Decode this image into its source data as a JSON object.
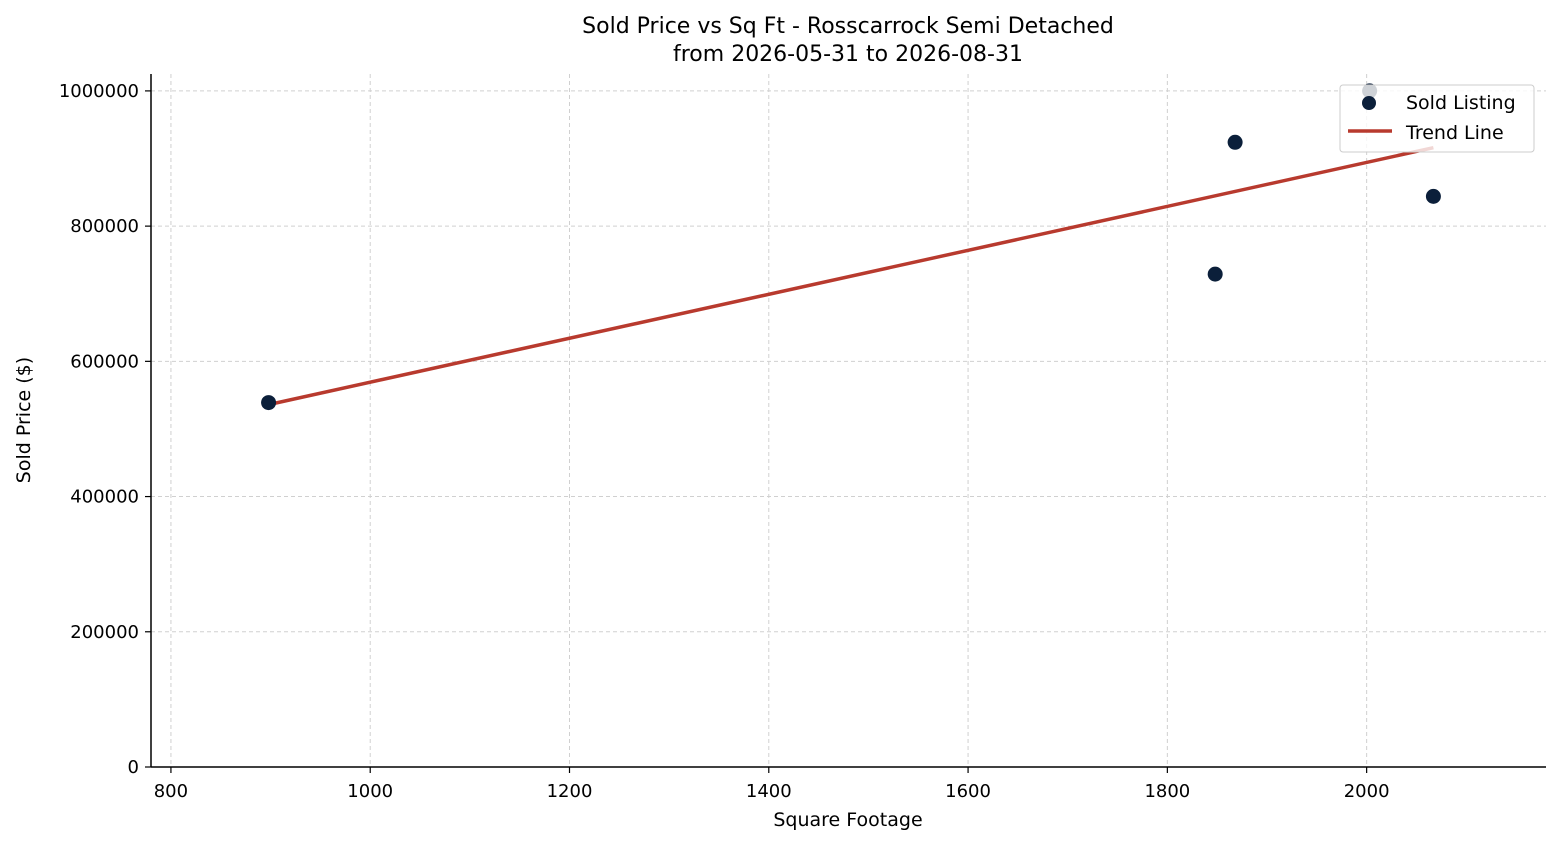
{
  "chart_data": {
    "type": "scatter",
    "title": "Sold Price vs Sq Ft - Rosscarrock Semi Detached",
    "subtitle": "from 2026-05-31 to 2026-08-31",
    "xlabel": "Square Footage",
    "ylabel": "Sold Price ($)",
    "xlim": [
      780,
      2180
    ],
    "ylim": [
      0,
      1025000
    ],
    "xticks": [
      800,
      1000,
      1200,
      1400,
      1600,
      1800,
      2000
    ],
    "yticks": [
      0,
      200000,
      400000,
      600000,
      800000,
      1000000
    ],
    "grid": true,
    "legend_position": "top-right",
    "series": [
      {
        "name": "Sold Listing",
        "kind": "scatter",
        "color": "#0b1f3a",
        "x": [
          898,
          1848,
          1868,
          2003,
          2067
        ],
        "y": [
          539000,
          729000,
          924000,
          1000000,
          844000
        ]
      },
      {
        "name": "Trend Line",
        "kind": "line",
        "color": "#b83a2e",
        "x": [
          898,
          2067
        ],
        "y": [
          536000,
          916000
        ]
      }
    ]
  }
}
